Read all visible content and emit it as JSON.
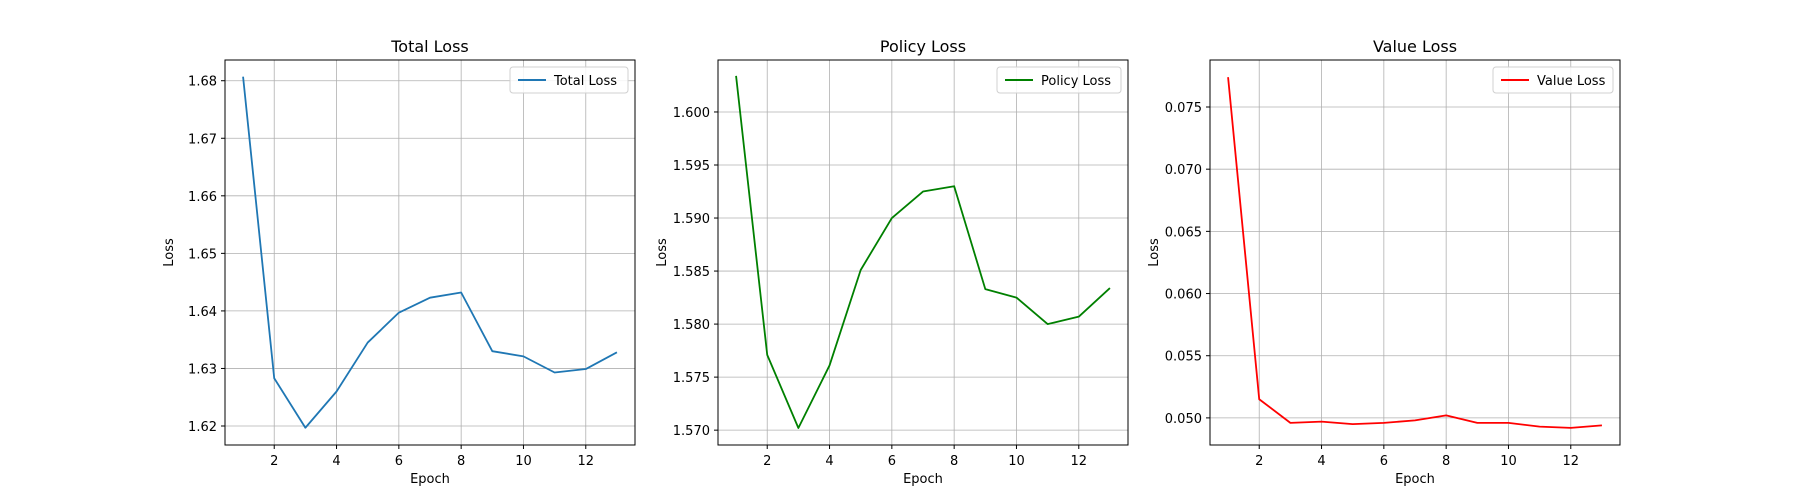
{
  "chart_data": [
    {
      "type": "line",
      "title": "Total Loss",
      "xlabel": "Epoch",
      "ylabel": "Loss",
      "grid": true,
      "legend": "top-right",
      "xlim": [
        0.42,
        13.58
      ],
      "ylim": [
        1.6167,
        1.6836
      ],
      "xticks": [
        2,
        4,
        6,
        8,
        10,
        12
      ],
      "xtick_labels": [
        "2",
        "4",
        "6",
        "8",
        "10",
        "12"
      ],
      "yticks": [
        1.62,
        1.63,
        1.64,
        1.65,
        1.66,
        1.67,
        1.68
      ],
      "ytick_labels": [
        "1.62",
        "1.63",
        "1.64",
        "1.65",
        "1.66",
        "1.67",
        "1.68"
      ],
      "series": [
        {
          "name": "Total Loss",
          "color": "#1f77b4",
          "x": [
            1,
            2,
            3,
            4,
            5,
            6,
            7,
            8,
            9,
            10,
            11,
            12,
            13
          ],
          "values": [
            1.6807,
            1.6283,
            1.6197,
            1.626,
            1.6345,
            1.6397,
            1.6423,
            1.6432,
            1.633,
            1.6321,
            1.6293,
            1.6299,
            1.6328
          ]
        }
      ]
    },
    {
      "type": "line",
      "title": "Policy Loss",
      "xlabel": "Epoch",
      "ylabel": "Loss",
      "grid": true,
      "legend": "top-right",
      "xlim": [
        0.42,
        13.58
      ],
      "ylim": [
        1.5686,
        1.6049
      ],
      "xticks": [
        2,
        4,
        6,
        8,
        10,
        12
      ],
      "xtick_labels": [
        "2",
        "4",
        "6",
        "8",
        "10",
        "12"
      ],
      "yticks": [
        1.57,
        1.575,
        1.58,
        1.585,
        1.59,
        1.595,
        1.6
      ],
      "ytick_labels": [
        "1.570",
        "1.575",
        "1.580",
        "1.585",
        "1.590",
        "1.595",
        "1.600"
      ],
      "series": [
        {
          "name": "Policy Loss",
          "color": "#008000",
          "x": [
            1,
            2,
            3,
            4,
            5,
            6,
            7,
            8,
            9,
            10,
            11,
            12,
            13
          ],
          "values": [
            1.6034,
            1.5771,
            1.5702,
            1.5761,
            1.5851,
            1.59,
            1.5925,
            1.593,
            1.5833,
            1.5825,
            1.58,
            1.5807,
            1.5834
          ]
        }
      ]
    },
    {
      "type": "line",
      "title": "Value Loss",
      "xlabel": "Epoch",
      "ylabel": "Loss",
      "grid": true,
      "legend": "top-right",
      "xlim": [
        0.42,
        13.58
      ],
      "ylim": [
        0.04782,
        0.07878
      ],
      "xticks": [
        2,
        4,
        6,
        8,
        10,
        12
      ],
      "xtick_labels": [
        "2",
        "4",
        "6",
        "8",
        "10",
        "12"
      ],
      "yticks": [
        0.05,
        0.055,
        0.06,
        0.065,
        0.07,
        0.075
      ],
      "ytick_labels": [
        "0.050",
        "0.055",
        "0.060",
        "0.065",
        "0.070",
        "0.075"
      ],
      "series": [
        {
          "name": "Value Loss",
          "color": "#ff0000",
          "x": [
            1,
            2,
            3,
            4,
            5,
            6,
            7,
            8,
            9,
            10,
            11,
            12,
            13
          ],
          "values": [
            0.0774,
            0.0515,
            0.0496,
            0.0497,
            0.0495,
            0.0496,
            0.0498,
            0.0502,
            0.0496,
            0.0496,
            0.0493,
            0.0492,
            0.0494
          ]
        }
      ]
    }
  ]
}
